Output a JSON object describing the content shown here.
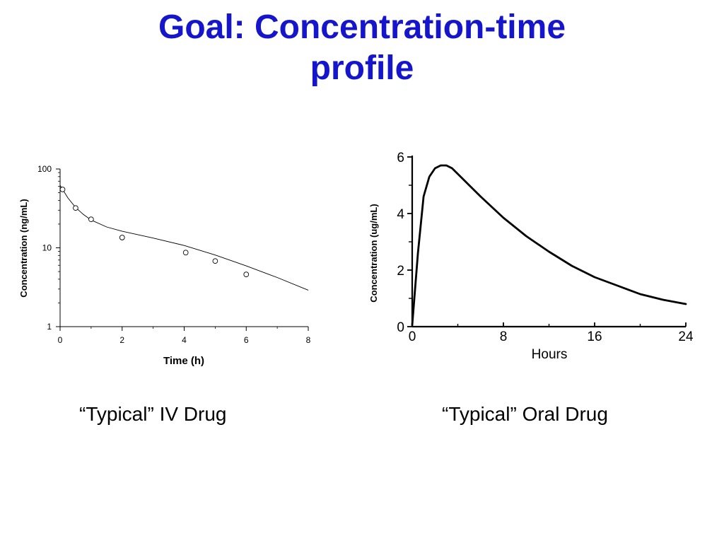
{
  "title": {
    "line1": "Goal: Concentration-time",
    "line2": "profile"
  },
  "captions": {
    "iv": "“Typical” IV Drug",
    "oral": "“Typical” Oral Drug"
  },
  "colors": {
    "title": "#1515cc",
    "line": "#000000"
  },
  "chart_data": [
    {
      "type": "scatter",
      "xlabel": "Time (h)",
      "ylabel": "Concentration (ng/mL)",
      "xlim": [
        0,
        8
      ],
      "ylim": [
        1,
        100
      ],
      "yscale": "log",
      "xticks": [
        0,
        2,
        4,
        6,
        8
      ],
      "xtick_labels": [
        "0",
        "2",
        "4",
        "6",
        "8"
      ],
      "yticks": [
        1,
        10,
        100
      ],
      "ytick_labels": [
        "1",
        "10",
        "100"
      ],
      "grid": false,
      "points": {
        "x": [
          0.08,
          0.5,
          1,
          2,
          4.05,
          5,
          6
        ],
        "y": [
          55,
          32,
          23,
          13.5,
          8.7,
          6.8,
          4.6
        ]
      },
      "fit_line": {
        "x": [
          0,
          0.25,
          0.5,
          0.75,
          1,
          1.5,
          2,
          3,
          4,
          5,
          6,
          7,
          8
        ],
        "y": [
          62,
          43,
          32.5,
          26.5,
          22.5,
          18.4,
          16.2,
          13.3,
          10.7,
          8.1,
          5.9,
          4.2,
          2.9
        ]
      }
    },
    {
      "type": "line",
      "xlabel": "Hours",
      "ylabel": "Concentration (ug/mL)",
      "xlim": [
        0,
        24
      ],
      "ylim": [
        0,
        6
      ],
      "xticks": [
        0,
        8,
        16,
        24
      ],
      "xtick_labels": [
        "0",
        "8",
        "16",
        "24"
      ],
      "xminor": [
        4,
        12,
        20
      ],
      "yticks": [
        0,
        2,
        4,
        6
      ],
      "ytick_labels": [
        "0",
        "2",
        "4",
        "6"
      ],
      "yminor": [
        1,
        3,
        5
      ],
      "grid": false,
      "series": [
        {
          "x": [
            0,
            0.5,
            1,
            1.5,
            2,
            2.5,
            3,
            3.5,
            4,
            5,
            6,
            8,
            10,
            12,
            14,
            16,
            18,
            20,
            22,
            24
          ],
          "y": [
            0.05,
            2.6,
            4.6,
            5.3,
            5.6,
            5.7,
            5.7,
            5.6,
            5.4,
            5.0,
            4.6,
            3.85,
            3.2,
            2.65,
            2.15,
            1.75,
            1.45,
            1.15,
            0.95,
            0.8
          ]
        }
      ]
    }
  ]
}
